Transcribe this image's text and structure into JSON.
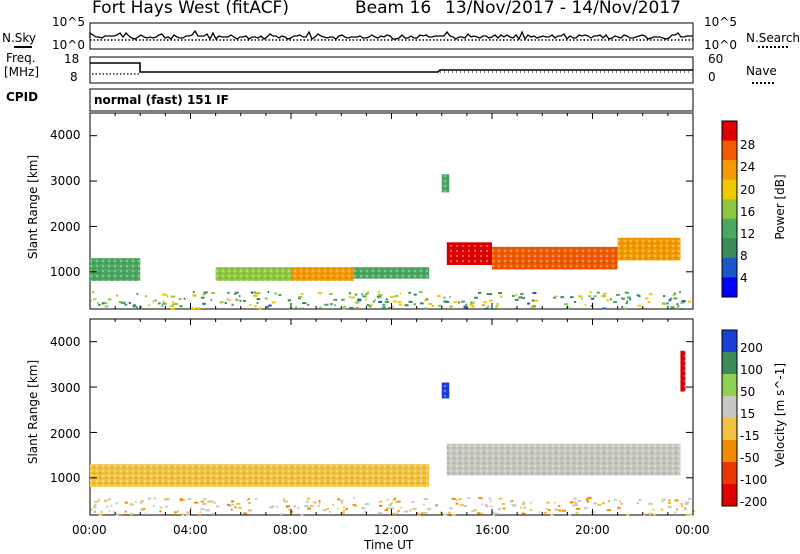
{
  "header": {
    "radar": "Fort Hays West (fitACF)",
    "beam": "Beam 16",
    "dates": "13/Nov/2017 - 14/Nov/2017"
  },
  "status_panels": {
    "nsky_label": "N.Sky",
    "nsearch_label": "N.Search",
    "freq_label_1": "Freq.",
    "freq_label_2": "[MHz]",
    "nave_label": "Nave",
    "cpid_label": "CPID",
    "cpid_text": "normal (fast) 151 IF",
    "noise_ticks_left": [
      "10^5",
      "10^0"
    ],
    "noise_ticks_right": [
      "10^5",
      "10^0"
    ],
    "freq_ticks": [
      "18",
      "8"
    ],
    "nave_ticks": [
      "60",
      "0"
    ]
  },
  "x_axis": {
    "label": "Time UT",
    "ticks": [
      "00:00",
      "04:00",
      "08:00",
      "12:00",
      "16:00",
      "20:00",
      "00:00"
    ]
  },
  "colors": {
    "power_scale": [
      "#0000ff",
      "#1a56c8",
      "#3a8a5a",
      "#4aa860",
      "#8ec840",
      "#f0c800",
      "#f59a00",
      "#f05a00",
      "#e00000"
    ],
    "velocity_scale": [
      "#1a3fd8",
      "#3a8a5a",
      "#8fd050",
      "#c8c8c0",
      "#f2c240",
      "#f08c00",
      "#e83800",
      "#e00000"
    ]
  },
  "chart_data": [
    {
      "type": "heatmap",
      "panel": "power",
      "ylabel": "Slant Range [km]",
      "yticks": [
        "4000",
        "3000",
        "2000",
        "1000"
      ],
      "colorbar_label": "Power [dB]",
      "colorbar_ticks": [
        "28",
        "24",
        "20",
        "16",
        "12",
        "8",
        "4"
      ],
      "scatter_regions": [
        {
          "t_start": 0.0,
          "t_end": 2.0,
          "range_low": 800,
          "range_high": 1300,
          "value": 12
        },
        {
          "t_start": 5.0,
          "t_end": 8.0,
          "range_low": 800,
          "range_high": 1100,
          "value": 14
        },
        {
          "t_start": 8.0,
          "t_end": 10.5,
          "range_low": 800,
          "range_high": 1100,
          "value": 20
        },
        {
          "t_start": 10.5,
          "t_end": 13.5,
          "range_low": 850,
          "range_high": 1100,
          "value": 10
        },
        {
          "t_start": 14.2,
          "t_end": 16.0,
          "range_low": 1150,
          "range_high": 1650,
          "value": 26
        },
        {
          "t_start": 16.0,
          "t_end": 21.0,
          "range_low": 1050,
          "range_high": 1550,
          "value": 24
        },
        {
          "t_start": 21.0,
          "t_end": 23.5,
          "range_low": 1250,
          "range_high": 1750,
          "value": 22
        },
        {
          "t_start": 14.0,
          "t_end": 14.3,
          "range_low": 2750,
          "range_high": 3150,
          "value": 12
        }
      ]
    },
    {
      "type": "heatmap",
      "panel": "velocity",
      "ylabel": "Slant Range [km]",
      "yticks": [
        "4000",
        "3000",
        "2000",
        "1000"
      ],
      "colorbar_label": "Velocity [m s^-1]",
      "colorbar_ticks": [
        "200",
        "100",
        "50",
        "15",
        "-15",
        "-50",
        "-100",
        "-200"
      ],
      "scatter_regions": [
        {
          "t_start": 0.0,
          "t_end": 13.5,
          "range_low": 800,
          "range_high": 1300,
          "value": -30
        },
        {
          "t_start": 14.2,
          "t_end": 23.5,
          "range_low": 1050,
          "range_high": 1750,
          "value": 0
        },
        {
          "t_start": 14.0,
          "t_end": 14.3,
          "range_low": 2750,
          "range_high": 3100,
          "value": 250
        },
        {
          "t_start": 23.5,
          "t_end": 23.7,
          "range_low": 2900,
          "range_high": 3800,
          "value": -200
        }
      ]
    }
  ]
}
